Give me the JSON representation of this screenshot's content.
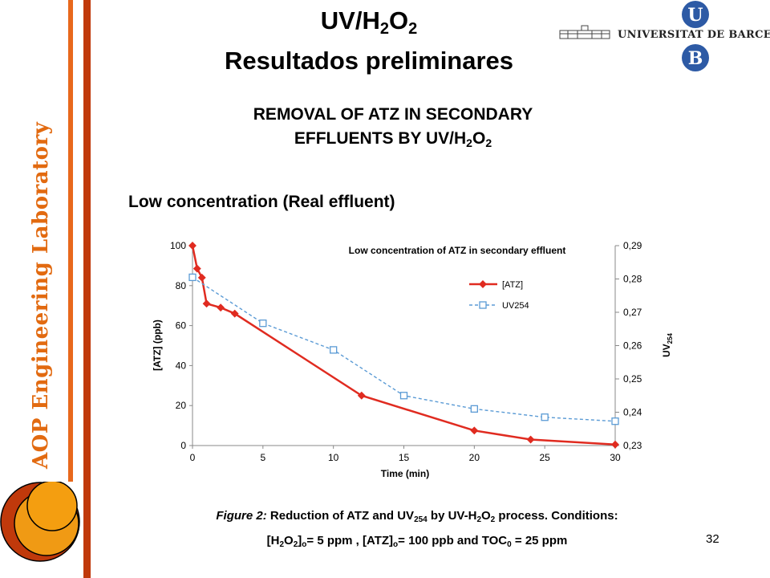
{
  "sidebar": {
    "lab_label": "AOP Engineering Laboratory",
    "accent_orange": "#e26a10",
    "accent_red": "#c0390b"
  },
  "header": {
    "title_uv": "UV/H",
    "title_sub2a": "2",
    "title_o": "O",
    "title_sub2b": "2",
    "title_line2": "Resultados preliminares",
    "logo_text": "UNIVERSITAT DE BARCELONA",
    "logo_letter_u": "U",
    "logo_letter_b": "B"
  },
  "subtitle": {
    "line1": "REMOVAL OF ATZ IN SECONDARY",
    "line2_prefix": "EFFLUENTS BY UV/H",
    "sub_a": "2",
    "o": "O",
    "sub_b": "2"
  },
  "section": {
    "label": "Low concentration (Real effluent)"
  },
  "chart_data": {
    "type": "line",
    "title": "Low concentration of ATZ in secondary effluent",
    "xlabel": "Time (min)",
    "ylabel": "[ATZ] (ppb)",
    "y2label": "UV",
    "y2label_sub": "254",
    "xlim": [
      0,
      30
    ],
    "ylim": [
      0,
      100
    ],
    "y2lim": [
      0.23,
      0.29
    ],
    "xticks": [
      0,
      5,
      10,
      15,
      20,
      25,
      30
    ],
    "yticks": [
      0,
      20,
      40,
      60,
      80,
      100
    ],
    "y2ticks": [
      "0,23",
      "0,24",
      "0,25",
      "0,26",
      "0,27",
      "0,28",
      "0,29"
    ],
    "legend_position": "right",
    "grid": false,
    "series": [
      {
        "name": "[ATZ]",
        "axis": "left",
        "color": "#e02b20",
        "marker": "diamond",
        "x": [
          0,
          0.33,
          0.67,
          1,
          2,
          3,
          12,
          20,
          24,
          30
        ],
        "y": [
          100,
          88.5,
          84,
          71,
          69,
          66,
          25,
          7.5,
          3,
          0.5
        ]
      },
      {
        "name": "UV254",
        "axis": "right",
        "color": "#5b9bd5",
        "marker": "square",
        "x": [
          0,
          5,
          10,
          15,
          20,
          25,
          30
        ],
        "y": [
          0.2805,
          0.2667,
          0.2587,
          0.245,
          0.241,
          0.2385,
          0.2373
        ]
      }
    ]
  },
  "caption": {
    "fig_label": "Figure 2:",
    "text1": " Reduction of ATZ and UV",
    "sub254": "254",
    "text2": " by UV-H",
    "s2a": "2",
    "o1": "O",
    "s2b": "2",
    "text3": " process. Conditions:",
    "l2_a": "[H",
    "l2_s2a": "2",
    "l2_o": "O",
    "l2_s2b": "2",
    "l2_b": "]",
    "l2_o0": "o",
    "l2_c": "= 5 ppm , [ATZ]",
    "l2_o1": "o",
    "l2_d": "= 100 ppb and TOC",
    "l2_0": "0",
    "l2_e": " = 25 ppm"
  },
  "page_number": "32"
}
